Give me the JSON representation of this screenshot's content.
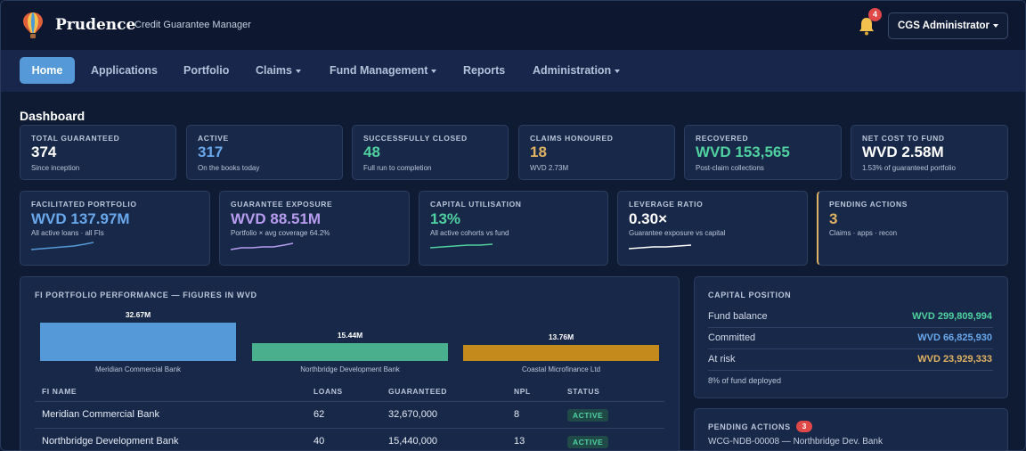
{
  "header": {
    "brand": "Prudence",
    "tagline": "Credit Guarantee Manager",
    "notification_count": "4",
    "user_label": "CGS Administrator"
  },
  "nav": {
    "home": "Home",
    "applications": "Applications",
    "portfolio": "Portfolio",
    "claims": "Claims",
    "fund_management": "Fund Management",
    "reports": "Reports",
    "administration": "Administration"
  },
  "page_title": "Dashboard",
  "kpi_row1": [
    {
      "label": "TOTAL GUARANTEED",
      "value": "374",
      "sub": "Since inception",
      "color": "#ffffff"
    },
    {
      "label": "ACTIVE",
      "value": "317",
      "sub": "On the books today",
      "color": "#6aa8ec"
    },
    {
      "label": "SUCCESSFULLY CLOSED",
      "value": "48",
      "sub": "Full run to completion",
      "color": "#4fd1a0"
    },
    {
      "label": "CLAIMS HONOURED",
      "value": "18",
      "sub": "WVD 2.73M",
      "color": "#e0b363"
    },
    {
      "label": "RECOVERED",
      "value": "WVD 153,565",
      "sub": "Post-claim collections",
      "color": "#4fd1a0"
    },
    {
      "label": "NET COST TO FUND",
      "value": "WVD 2.58M",
      "sub": "1.53% of guaranteed portfolio",
      "color": "#ffffff"
    }
  ],
  "kpi_row2": [
    {
      "label": "FACILITATED PORTFOLIO",
      "value": "WVD 137.97M",
      "sub": "All active loans · all FIs",
      "color": "#6aa8ec"
    },
    {
      "label": "GUARANTEE EXPOSURE",
      "value": "WVD 88.51M",
      "sub": "Portfolio × avg coverage 64.2%",
      "color": "#b79cf0"
    },
    {
      "label": "CAPITAL UTILISATION",
      "value": "13%",
      "sub": "All active cohorts vs fund",
      "color": "#4fd1a0"
    },
    {
      "label": "LEVERAGE RATIO",
      "value": "0.30×",
      "sub": "Guarantee exposure vs capital",
      "color": "#ffffff"
    },
    {
      "label": "PENDING ACTIONS",
      "value": "3",
      "sub": "Claims · apps · recon",
      "color": "#e0b363"
    }
  ],
  "fi_panel": {
    "title": "FI PORTFOLIO PERFORMANCE — FIGURES IN WVD",
    "columns": [
      "FI NAME",
      "LOANS",
      "GUARANTEED",
      "NPL",
      "STATUS"
    ],
    "rows": [
      {
        "name": "Meridian Commercial Bank",
        "loans": "62",
        "guaranteed": "32,670,000",
        "npl": "8",
        "status": "ACTIVE"
      },
      {
        "name": "Northbridge Development Bank",
        "loans": "40",
        "guaranteed": "15,440,000",
        "npl": "13",
        "status": "ACTIVE"
      }
    ]
  },
  "chart_data": {
    "type": "bar",
    "categories": [
      "Meridian Commercial Bank",
      "Northbridge Development Bank",
      "Coastal Microfinance Ltd"
    ],
    "values": [
      32.67,
      15.44,
      13.76
    ],
    "value_labels": [
      "32.67M",
      "15.44M",
      "13.76M"
    ],
    "colors": [
      "#5599d8",
      "#4aaf8c",
      "#c58a1c"
    ],
    "ylim": [
      0,
      32.67
    ]
  },
  "capital": {
    "title": "CAPITAL POSITION",
    "rows": [
      {
        "label": "Fund balance",
        "value": "WVD 299,809,994",
        "color": "#4fd1a0"
      },
      {
        "label": "Committed",
        "value": "WVD 66,825,930",
        "color": "#6aa8ec"
      },
      {
        "label": "At risk",
        "value": "WVD 23,929,333",
        "color": "#e0b363"
      }
    ],
    "note": "8% of fund deployed"
  },
  "pending": {
    "title": "PENDING ACTIONS",
    "count": "3",
    "first_item": "WCG-NDB-00008 — Northbridge Dev. Bank"
  }
}
